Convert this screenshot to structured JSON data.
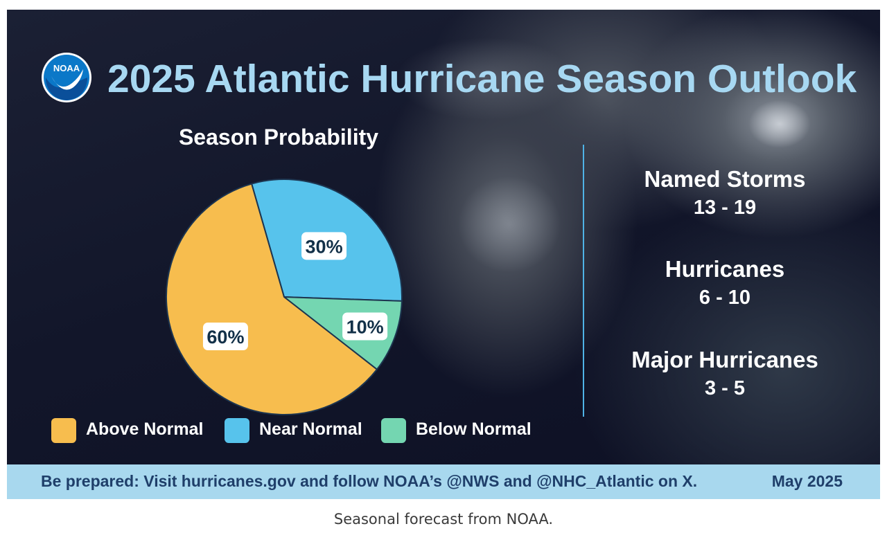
{
  "header": {
    "logo_text": "NOAA",
    "title": "2025 Atlantic Hurricane Season Outlook"
  },
  "chart_data": {
    "type": "pie",
    "title": "Season Probability",
    "categories": [
      "Above Normal",
      "Near Normal",
      "Below Normal"
    ],
    "values": [
      60,
      30,
      10
    ],
    "value_labels": [
      "60%",
      "30%",
      "10%"
    ],
    "colors": [
      "#f7bd4e",
      "#57c3ec",
      "#74d6b1"
    ],
    "legend_placement": "bottom"
  },
  "stats": [
    {
      "label": "Named Storms",
      "value": "13 - 19"
    },
    {
      "label": "Hurricanes",
      "value": "6 - 10"
    },
    {
      "label": "Major Hurricanes",
      "value": "3 - 5"
    }
  ],
  "footer": {
    "message": "Be prepared: Visit hurricanes.gov and follow NOAA’s @NWS and @NHC_Atlantic on X.",
    "date": "May 2025"
  },
  "caption": "Seasonal forecast from NOAA.",
  "colors": {
    "title": "#a7d8f2",
    "footer_bg": "#a8d8ee",
    "footer_text": "#1f3f6a",
    "divider": "#4fb3e6"
  }
}
